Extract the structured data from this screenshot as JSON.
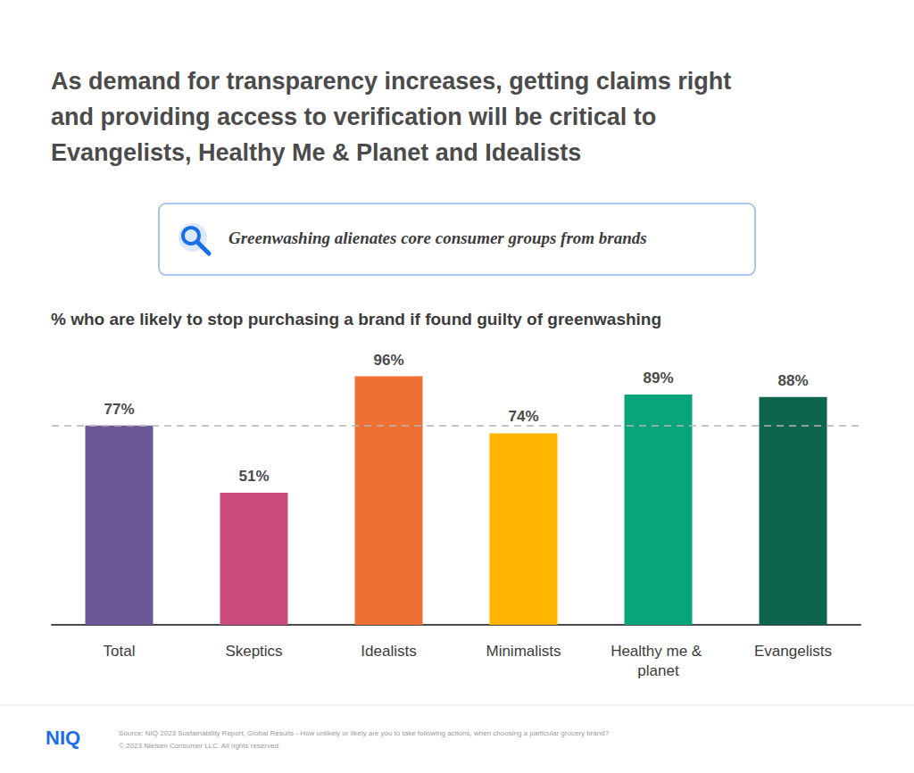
{
  "chart_data": {
    "type": "bar",
    "title": "As demand for transparency increases, getting claims right and providing access to verification will be critical to Evangelists, Healthy Me & Planet and Idealists",
    "callout": "Greenwashing alienates core consumer groups from brands",
    "subtitle": "% who are likely to stop purchasing a brand if found guilty of greenwashing",
    "categories": [
      "Total",
      "Skeptics",
      "Idealists",
      "Minimalists",
      "Healthy me & planet",
      "Evangelists"
    ],
    "values": [
      77,
      51,
      96,
      74,
      89,
      88
    ],
    "value_labels": [
      "77%",
      "51%",
      "96%",
      "74%",
      "89%",
      "88%"
    ],
    "colors": [
      "#6a5796",
      "#c94b7b",
      "#ef7033",
      "#ffb500",
      "#08a57a",
      "#0d654e"
    ],
    "reference_value": 77,
    "ylim": [
      0,
      100
    ],
    "yticks": [
      0,
      100
    ],
    "grid": false,
    "data_labels": true,
    "tick_labels": "x",
    "logo": "NIQ",
    "source": "Source: NIQ 2023 Sustainability Report, Global Results - How unlikely or likely are you to take following actions, when choosing a particular grocery brand?",
    "copyright": "© 2023 Nielsen Consumer LLC. All rights reserved."
  }
}
